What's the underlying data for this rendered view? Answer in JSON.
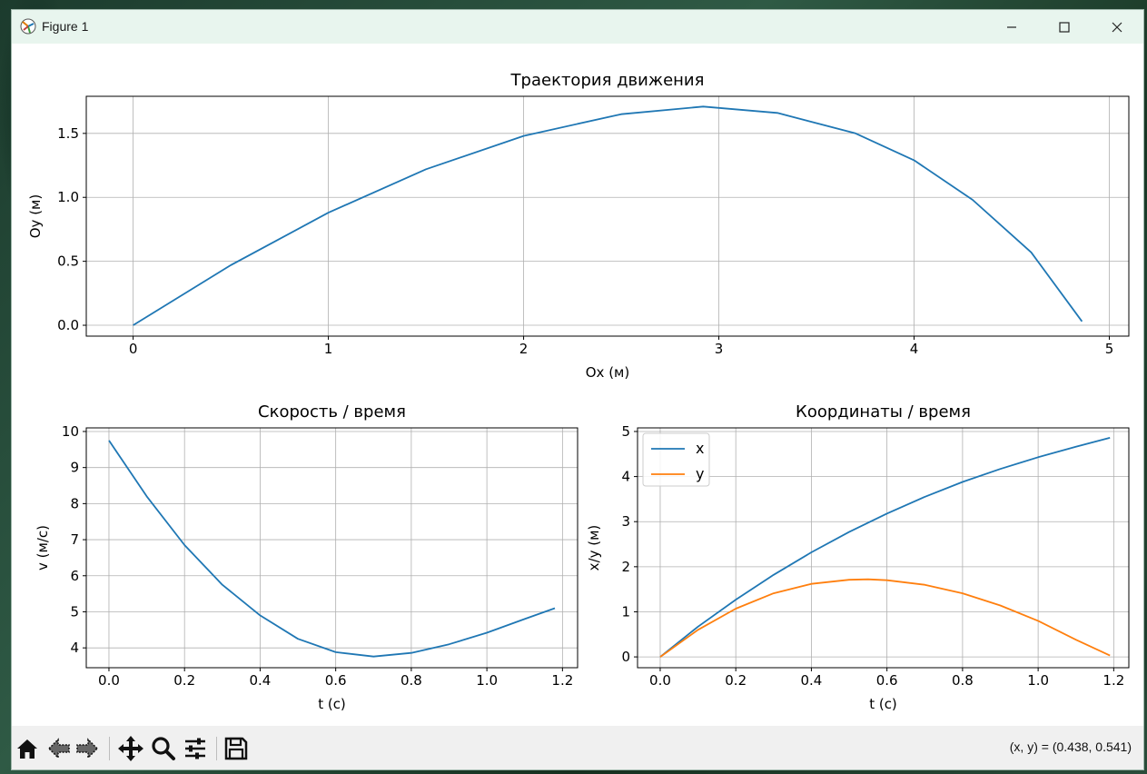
{
  "window": {
    "title": "Figure 1",
    "icon": "matplotlib-icon"
  },
  "controls": [
    "minimize-icon",
    "maximize-icon",
    "close-icon"
  ],
  "toolbar": {
    "buttons": [
      "home-icon",
      "back-arrow-icon",
      "forward-arrow-icon",
      "pan-icon",
      "zoom-icon",
      "configure-subplots-icon",
      "save-icon"
    ],
    "coords_label": "(x, y) = (0.438, 0.541)"
  },
  "colors": {
    "series1": "#1f77b4",
    "series2": "#ff7f0e",
    "grid": "#b0b0b0",
    "titlebar": "#e8f5ee",
    "toolbar": "#f0f0f0"
  },
  "chart_data": [
    {
      "type": "line",
      "title": "Траектория движения",
      "xlabel": "Ox (м)",
      "ylabel": "Oy (м)",
      "xlim": [
        -0.24,
        5.1
      ],
      "ylim": [
        -0.085,
        1.79
      ],
      "xticks": [
        "0",
        "1",
        "2",
        "3",
        "4",
        "5"
      ],
      "yticks": [
        "0.0",
        "0.5",
        "1.0",
        "1.5"
      ],
      "grid": true,
      "series": [
        {
          "x": [
            0,
            0.5,
            1.0,
            1.5,
            2.0,
            2.5,
            2.92,
            3.3,
            3.7,
            4.0,
            4.3,
            4.6,
            4.86
          ],
          "y": [
            0,
            0.47,
            0.88,
            1.22,
            1.48,
            1.65,
            1.71,
            1.66,
            1.5,
            1.29,
            0.98,
            0.57,
            0.03
          ]
        }
      ]
    },
    {
      "type": "line",
      "title": "Скорость / время",
      "xlabel": "t (с)",
      "ylabel": "v (м/с)",
      "xlim": [
        -0.06,
        1.24
      ],
      "ylim": [
        3.45,
        10.1
      ],
      "xticks": [
        "0.0",
        "0.2",
        "0.4",
        "0.6",
        "0.8",
        "1.0",
        "1.2"
      ],
      "yticks": [
        "4",
        "5",
        "6",
        "7",
        "8",
        "9",
        "10"
      ],
      "grid": true,
      "series": [
        {
          "x": [
            0,
            0.1,
            0.2,
            0.3,
            0.4,
            0.5,
            0.6,
            0.7,
            0.8,
            0.9,
            1.0,
            1.1,
            1.18
          ],
          "y": [
            9.75,
            8.2,
            6.85,
            5.75,
            4.9,
            4.25,
            3.88,
            3.76,
            3.86,
            4.1,
            4.42,
            4.8,
            5.1
          ]
        }
      ]
    },
    {
      "type": "line",
      "title": "Координаты / время",
      "xlabel": "t (с)",
      "ylabel": "x/y (м)",
      "xlim": [
        -0.06,
        1.24
      ],
      "ylim": [
        -0.24,
        5.08
      ],
      "xticks": [
        "0.0",
        "0.2",
        "0.4",
        "0.6",
        "0.8",
        "1.0",
        "1.2"
      ],
      "yticks": [
        "0",
        "1",
        "2",
        "3",
        "4",
        "5"
      ],
      "grid": true,
      "legend": "top-left",
      "series": [
        {
          "name": "x",
          "color": "#1f77b4",
          "x": [
            0,
            0.1,
            0.2,
            0.3,
            0.4,
            0.5,
            0.6,
            0.7,
            0.8,
            0.9,
            1.0,
            1.1,
            1.19
          ],
          "y": [
            0,
            0.67,
            1.27,
            1.82,
            2.32,
            2.77,
            3.18,
            3.55,
            3.88,
            4.17,
            4.43,
            4.66,
            4.86
          ]
        },
        {
          "name": "y",
          "color": "#ff7f0e",
          "x": [
            0,
            0.1,
            0.2,
            0.3,
            0.4,
            0.5,
            0.55,
            0.6,
            0.7,
            0.8,
            0.9,
            1.0,
            1.1,
            1.19
          ],
          "y": [
            0,
            0.6,
            1.07,
            1.41,
            1.62,
            1.71,
            1.72,
            1.7,
            1.6,
            1.41,
            1.14,
            0.8,
            0.38,
            0.03
          ]
        }
      ]
    }
  ]
}
